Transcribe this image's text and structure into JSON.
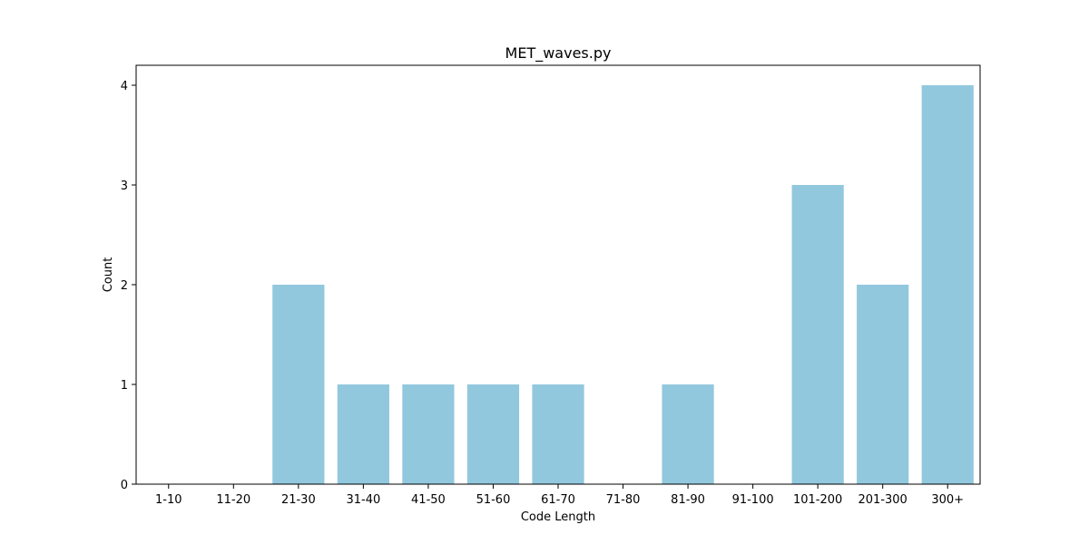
{
  "chart_data": {
    "type": "bar",
    "title": "MET_waves.py",
    "xlabel": "Code Length",
    "ylabel": "Count",
    "categories": [
      "1-10",
      "11-20",
      "21-30",
      "31-40",
      "41-50",
      "51-60",
      "61-70",
      "71-80",
      "81-90",
      "91-100",
      "101-200",
      "201-300",
      "300+"
    ],
    "values": [
      0,
      0,
      2,
      1,
      1,
      1,
      1,
      0,
      1,
      0,
      3,
      2,
      4
    ],
    "ylim": [
      0,
      4.2
    ],
    "yticks": [
      0,
      1,
      2,
      3,
      4
    ],
    "bar_color": "#92c8de",
    "grid": false,
    "legend": false
  }
}
